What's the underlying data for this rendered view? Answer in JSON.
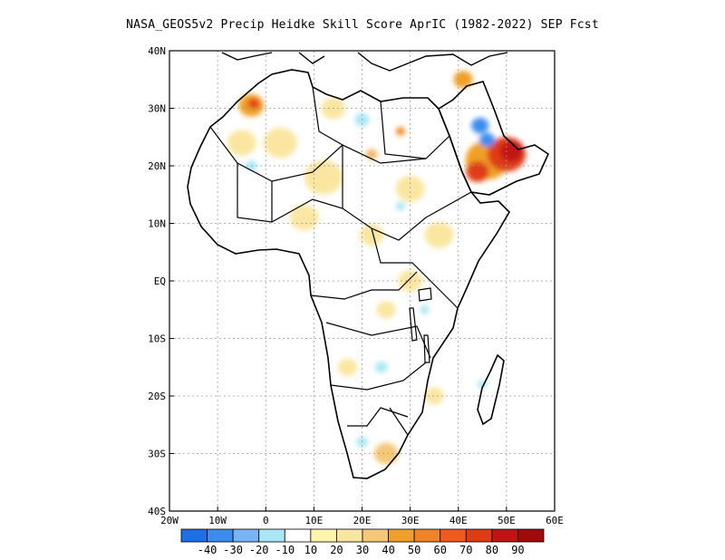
{
  "title": "NASA_GEOS5v2 Precip Heidke Skill Score AprIC (1982-2022) SEP Fcst",
  "map": {
    "lon_range": [
      -20,
      60
    ],
    "lat_range": [
      -40,
      40
    ],
    "lat_ticks": [
      {
        "value": 40,
        "label": "40N"
      },
      {
        "value": 30,
        "label": "30N"
      },
      {
        "value": 20,
        "label": "20N"
      },
      {
        "value": 10,
        "label": "10N"
      },
      {
        "value": 0,
        "label": "EQ"
      },
      {
        "value": -10,
        "label": "10S"
      },
      {
        "value": -20,
        "label": "20S"
      },
      {
        "value": -30,
        "label": "30S"
      },
      {
        "value": -40,
        "label": "40S"
      }
    ],
    "lon_ticks": [
      {
        "value": -20,
        "label": "20W"
      },
      {
        "value": -10,
        "label": "10W"
      },
      {
        "value": 0,
        "label": "0"
      },
      {
        "value": 10,
        "label": "10E"
      },
      {
        "value": 20,
        "label": "20E"
      },
      {
        "value": 30,
        "label": "30E"
      },
      {
        "value": 40,
        "label": "40E"
      },
      {
        "value": 50,
        "label": "50E"
      },
      {
        "value": 60,
        "label": "60E"
      }
    ],
    "grid": true,
    "skill_patches": [
      {
        "lon": -3,
        "lat": 30.5,
        "r": 2.6,
        "color": "#f0a028"
      },
      {
        "lon": -2.5,
        "lat": 30.8,
        "r": 1.2,
        "color": "#e03c14"
      },
      {
        "lon": 46,
        "lat": 21,
        "r": 4.5,
        "color": "#f0a028"
      },
      {
        "lon": 50,
        "lat": 22,
        "r": 4.0,
        "color": "#e03c14"
      },
      {
        "lon": 51,
        "lat": 22.5,
        "r": 2.4,
        "color": "#c01414"
      },
      {
        "lon": 44,
        "lat": 19,
        "r": 2.4,
        "color": "#e03c14"
      },
      {
        "lon": 44.5,
        "lat": 27,
        "r": 1.8,
        "color": "#3c8cf0"
      },
      {
        "lon": 46,
        "lat": 24.5,
        "r": 1.6,
        "color": "#3c8cf0"
      },
      {
        "lon": 41,
        "lat": 35,
        "r": 2.0,
        "color": "#f0a028"
      },
      {
        "lon": 28,
        "lat": 26,
        "r": 1.0,
        "color": "#f08c28"
      },
      {
        "lon": 22,
        "lat": 22,
        "r": 1.2,
        "color": "#f0b464"
      },
      {
        "lon": 3,
        "lat": 24,
        "r": 3.5,
        "color": "#fae6a0"
      },
      {
        "lon": -5,
        "lat": 24,
        "r": 3.0,
        "color": "#fae6a0"
      },
      {
        "lon": 12,
        "lat": 18,
        "r": 4.0,
        "color": "#fae6a0"
      },
      {
        "lon": 8,
        "lat": 11,
        "r": 3.0,
        "color": "#fae6a0"
      },
      {
        "lon": 30,
        "lat": 16,
        "r": 3.0,
        "color": "#fae6a0"
      },
      {
        "lon": 36,
        "lat": 8,
        "r": 3.0,
        "color": "#fae6a0"
      },
      {
        "lon": 22,
        "lat": 8,
        "r": 2.5,
        "color": "#fae6a0"
      },
      {
        "lon": 14,
        "lat": 30,
        "r": 2.5,
        "color": "#fae6a0"
      },
      {
        "lon": 30,
        "lat": 0,
        "r": 2.5,
        "color": "#fae6a0"
      },
      {
        "lon": 25,
        "lat": -5,
        "r": 2.0,
        "color": "#fae6a0"
      },
      {
        "lon": 17,
        "lat": -15,
        "r": 2.0,
        "color": "#fae6a0"
      },
      {
        "lon": 25,
        "lat": -30,
        "r": 2.5,
        "color": "#f5c878"
      },
      {
        "lon": 35,
        "lat": -20,
        "r": 2.0,
        "color": "#fae6a0"
      },
      {
        "lon": 20,
        "lat": -28,
        "r": 1.2,
        "color": "#aae6f5"
      },
      {
        "lon": 24,
        "lat": -15,
        "r": 1.3,
        "color": "#aae6f5"
      },
      {
        "lon": 33,
        "lat": -5,
        "r": 1.0,
        "color": "#aae6f5"
      },
      {
        "lon": 45,
        "lat": -18,
        "r": 1.0,
        "color": "#aae6f5"
      },
      {
        "lon": -3,
        "lat": 20,
        "r": 1.2,
        "color": "#aae6f5"
      },
      {
        "lon": 20,
        "lat": 28,
        "r": 1.5,
        "color": "#aae6f5"
      },
      {
        "lon": 28,
        "lat": 13,
        "r": 1.0,
        "color": "#aae6f5"
      }
    ]
  },
  "colorbar": {
    "colors": [
      "#1e6ee6",
      "#3c8cf0",
      "#78b4f5",
      "#aae6f5",
      "#ffffff",
      "#fff5aa",
      "#fae6a0",
      "#f5c878",
      "#f0a028",
      "#f08228",
      "#f05a1e",
      "#e03c14",
      "#c01414",
      "#a00a0a"
    ],
    "labels": [
      "-40",
      "-30",
      "-20",
      "-10",
      "10",
      "20",
      "30",
      "40",
      "50",
      "60",
      "70",
      "80",
      "90"
    ]
  }
}
